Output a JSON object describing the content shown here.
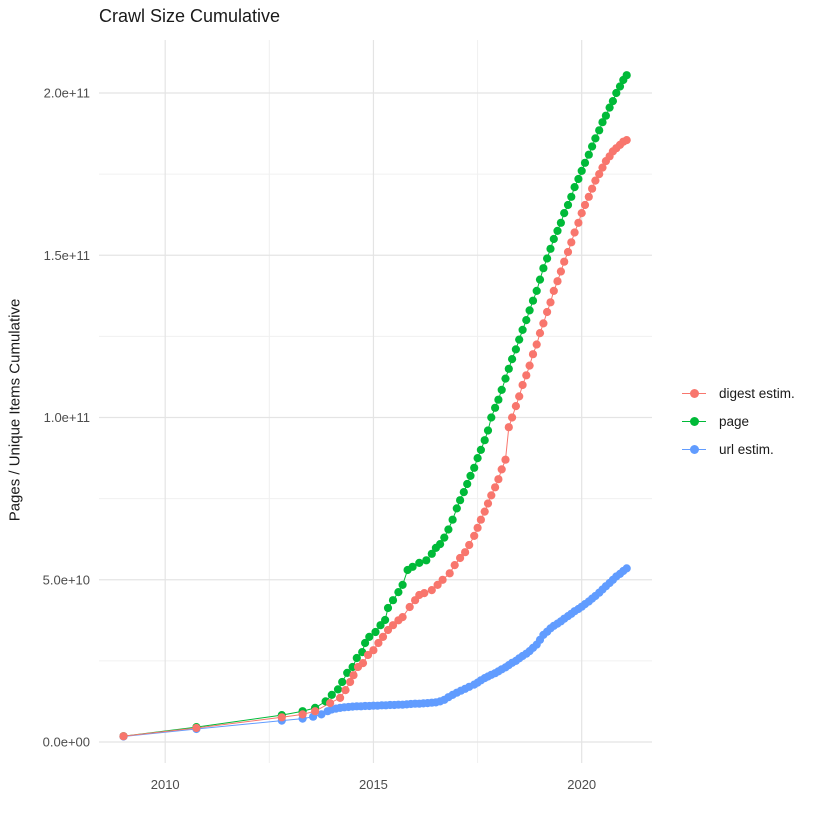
{
  "title": "Crawl Size Cumulative",
  "y_axis_title": "Pages / Unique Items Cumulative",
  "legend": {
    "position": "right",
    "items": [
      {
        "label": "digest estim.",
        "color": "#F8766D"
      },
      {
        "label": "page",
        "color": "#00BA38"
      },
      {
        "label": "url estim.",
        "color": "#619CFF"
      }
    ]
  },
  "axes": {
    "x_tick_labels": [
      "2010",
      "2015",
      "2020"
    ],
    "x_tick_years": [
      2010,
      2015,
      2020
    ],
    "x_minor_years": [
      2012.5,
      2017.5
    ],
    "y_tick_labels": [
      "0.0e+00",
      "5.0e+10",
      "1.0e+11",
      "1.5e+11",
      "2.0e+11"
    ],
    "y_tick_values_e10": [
      0,
      5,
      10,
      15,
      20
    ],
    "y_minor_values_e10": [
      2.5,
      7.5,
      12.5,
      17.5
    ]
  },
  "colors": {
    "background": "#ffffff",
    "grid_major": "#e4e4e4",
    "grid_minor": "#f0f0f0",
    "tick_text": "#4d4d4d",
    "title_text": "#1a1a1a",
    "digest": "#F8766D",
    "page": "#00BA38",
    "url": "#619CFF"
  },
  "chart_data": {
    "type": "line",
    "style": "line-with-points",
    "title": "Crawl Size Cumulative",
    "xlabel": "",
    "ylabel": "Pages / Unique Items Cumulative",
    "x_unit": "year (decimal)",
    "value_unit_multiplier": 10000000000.0,
    "xlim": [
      2008.4,
      2021.7
    ],
    "ylim": [
      0,
      205000000000.0
    ],
    "grid": true,
    "legend_position": "right",
    "series": [
      {
        "name": "digest estim.",
        "color": "#F8766D",
        "points_year_value_e10": [
          [
            2009.0,
            0.18
          ],
          [
            2010.75,
            0.43
          ],
          [
            2012.8,
            0.76
          ],
          [
            2013.3,
            0.85
          ],
          [
            2013.6,
            0.95
          ],
          [
            2013.96,
            1.2
          ],
          [
            2014.2,
            1.36
          ],
          [
            2014.33,
            1.6
          ],
          [
            2014.44,
            1.85
          ],
          [
            2014.52,
            2.06
          ],
          [
            2014.63,
            2.31
          ],
          [
            2014.75,
            2.43
          ],
          [
            2014.87,
            2.68
          ],
          [
            2015.0,
            2.83
          ],
          [
            2015.12,
            3.05
          ],
          [
            2015.23,
            3.24
          ],
          [
            2015.35,
            3.45
          ],
          [
            2015.47,
            3.6
          ],
          [
            2015.6,
            3.75
          ],
          [
            2015.7,
            3.85
          ],
          [
            2015.87,
            4.16
          ],
          [
            2016.0,
            4.37
          ],
          [
            2016.1,
            4.53
          ],
          [
            2016.22,
            4.59
          ],
          [
            2016.4,
            4.68
          ],
          [
            2016.54,
            4.84
          ],
          [
            2016.66,
            5.0
          ],
          [
            2016.83,
            5.2
          ],
          [
            2016.95,
            5.45
          ],
          [
            2017.08,
            5.67
          ],
          [
            2017.2,
            5.85
          ],
          [
            2017.3,
            6.07
          ],
          [
            2017.42,
            6.35
          ],
          [
            2017.5,
            6.6
          ],
          [
            2017.58,
            6.85
          ],
          [
            2017.67,
            7.1
          ],
          [
            2017.75,
            7.35
          ],
          [
            2017.83,
            7.6
          ],
          [
            2017.92,
            7.85
          ],
          [
            2018.0,
            8.1
          ],
          [
            2018.08,
            8.4
          ],
          [
            2018.17,
            8.7
          ],
          [
            2018.25,
            9.7
          ],
          [
            2018.33,
            10.0
          ],
          [
            2018.42,
            10.35
          ],
          [
            2018.5,
            10.65
          ],
          [
            2018.58,
            11.0
          ],
          [
            2018.67,
            11.3
          ],
          [
            2018.75,
            11.6
          ],
          [
            2018.83,
            11.95
          ],
          [
            2018.92,
            12.25
          ],
          [
            2019.0,
            12.6
          ],
          [
            2019.08,
            12.9
          ],
          [
            2019.17,
            13.25
          ],
          [
            2019.25,
            13.55
          ],
          [
            2019.33,
            13.9
          ],
          [
            2019.42,
            14.2
          ],
          [
            2019.5,
            14.5
          ],
          [
            2019.58,
            14.8
          ],
          [
            2019.67,
            15.1
          ],
          [
            2019.75,
            15.4
          ],
          [
            2019.83,
            15.7
          ],
          [
            2019.92,
            16.0
          ],
          [
            2020.0,
            16.3
          ],
          [
            2020.08,
            16.55
          ],
          [
            2020.17,
            16.8
          ],
          [
            2020.25,
            17.05
          ],
          [
            2020.33,
            17.3
          ],
          [
            2020.42,
            17.5
          ],
          [
            2020.5,
            17.7
          ],
          [
            2020.58,
            17.9
          ],
          [
            2020.67,
            18.05
          ],
          [
            2020.75,
            18.2
          ],
          [
            2020.83,
            18.3
          ],
          [
            2020.92,
            18.4
          ],
          [
            2021.0,
            18.5
          ],
          [
            2021.08,
            18.55
          ]
        ]
      },
      {
        "name": "page",
        "color": "#00BA38",
        "points_year_value_e10": [
          [
            2009.0,
            0.18
          ],
          [
            2010.75,
            0.46
          ],
          [
            2012.8,
            0.83
          ],
          [
            2013.3,
            0.95
          ],
          [
            2013.6,
            1.05
          ],
          [
            2013.85,
            1.25
          ],
          [
            2014.0,
            1.45
          ],
          [
            2014.15,
            1.62
          ],
          [
            2014.25,
            1.85
          ],
          [
            2014.37,
            2.13
          ],
          [
            2014.5,
            2.31
          ],
          [
            2014.6,
            2.59
          ],
          [
            2014.73,
            2.77
          ],
          [
            2014.8,
            3.05
          ],
          [
            2014.9,
            3.24
          ],
          [
            2015.05,
            3.39
          ],
          [
            2015.17,
            3.6
          ],
          [
            2015.28,
            3.76
          ],
          [
            2015.35,
            4.13
          ],
          [
            2015.47,
            4.37
          ],
          [
            2015.6,
            4.62
          ],
          [
            2015.7,
            4.84
          ],
          [
            2015.82,
            5.3
          ],
          [
            2015.94,
            5.4
          ],
          [
            2016.1,
            5.52
          ],
          [
            2016.27,
            5.6
          ],
          [
            2016.4,
            5.8
          ],
          [
            2016.5,
            5.98
          ],
          [
            2016.6,
            6.1
          ],
          [
            2016.7,
            6.3
          ],
          [
            2016.8,
            6.55
          ],
          [
            2016.9,
            6.85
          ],
          [
            2017.0,
            7.2
          ],
          [
            2017.08,
            7.45
          ],
          [
            2017.17,
            7.7
          ],
          [
            2017.25,
            7.95
          ],
          [
            2017.33,
            8.2
          ],
          [
            2017.42,
            8.45
          ],
          [
            2017.5,
            8.75
          ],
          [
            2017.58,
            9.0
          ],
          [
            2017.67,
            9.3
          ],
          [
            2017.75,
            9.6
          ],
          [
            2017.83,
            10.0
          ],
          [
            2017.92,
            10.3
          ],
          [
            2018.0,
            10.55
          ],
          [
            2018.08,
            10.85
          ],
          [
            2018.17,
            11.2
          ],
          [
            2018.25,
            11.5
          ],
          [
            2018.33,
            11.8
          ],
          [
            2018.42,
            12.1
          ],
          [
            2018.5,
            12.4
          ],
          [
            2018.58,
            12.7
          ],
          [
            2018.67,
            13.0
          ],
          [
            2018.75,
            13.3
          ],
          [
            2018.83,
            13.6
          ],
          [
            2018.92,
            13.9
          ],
          [
            2019.0,
            14.25
          ],
          [
            2019.08,
            14.6
          ],
          [
            2019.17,
            14.9
          ],
          [
            2019.25,
            15.2
          ],
          [
            2019.33,
            15.5
          ],
          [
            2019.42,
            15.75
          ],
          [
            2019.5,
            16.0
          ],
          [
            2019.58,
            16.3
          ],
          [
            2019.67,
            16.55
          ],
          [
            2019.75,
            16.8
          ],
          [
            2019.83,
            17.1
          ],
          [
            2019.92,
            17.35
          ],
          [
            2020.0,
            17.6
          ],
          [
            2020.08,
            17.85
          ],
          [
            2020.17,
            18.1
          ],
          [
            2020.25,
            18.35
          ],
          [
            2020.33,
            18.6
          ],
          [
            2020.42,
            18.85
          ],
          [
            2020.5,
            19.1
          ],
          [
            2020.58,
            19.3
          ],
          [
            2020.67,
            19.55
          ],
          [
            2020.75,
            19.75
          ],
          [
            2020.83,
            20.0
          ],
          [
            2020.92,
            20.2
          ],
          [
            2021.0,
            20.4
          ],
          [
            2021.08,
            20.55
          ]
        ]
      },
      {
        "name": "url estim.",
        "color": "#619CFF",
        "points_year_value_e10": [
          [
            2009.0,
            0.17
          ],
          [
            2010.75,
            0.4
          ],
          [
            2012.8,
            0.66
          ],
          [
            2013.3,
            0.72
          ],
          [
            2013.55,
            0.78
          ],
          [
            2013.75,
            0.85
          ],
          [
            2013.9,
            0.95
          ],
          [
            2014.0,
            1.0
          ],
          [
            2014.1,
            1.03
          ],
          [
            2014.2,
            1.05
          ],
          [
            2014.3,
            1.07
          ],
          [
            2014.4,
            1.08
          ],
          [
            2014.5,
            1.09
          ],
          [
            2014.6,
            1.1
          ],
          [
            2014.7,
            1.1
          ],
          [
            2014.8,
            1.11
          ],
          [
            2014.9,
            1.11
          ],
          [
            2015.0,
            1.12
          ],
          [
            2015.1,
            1.12
          ],
          [
            2015.2,
            1.13
          ],
          [
            2015.3,
            1.13
          ],
          [
            2015.4,
            1.14
          ],
          [
            2015.5,
            1.14
          ],
          [
            2015.6,
            1.15
          ],
          [
            2015.7,
            1.15
          ],
          [
            2015.8,
            1.16
          ],
          [
            2015.9,
            1.17
          ],
          [
            2016.0,
            1.18
          ],
          [
            2016.1,
            1.18
          ],
          [
            2016.2,
            1.19
          ],
          [
            2016.3,
            1.2
          ],
          [
            2016.4,
            1.21
          ],
          [
            2016.5,
            1.22
          ],
          [
            2016.6,
            1.25
          ],
          [
            2016.7,
            1.3
          ],
          [
            2016.8,
            1.38
          ],
          [
            2016.9,
            1.45
          ],
          [
            2017.0,
            1.52
          ],
          [
            2017.1,
            1.58
          ],
          [
            2017.2,
            1.64
          ],
          [
            2017.3,
            1.7
          ],
          [
            2017.42,
            1.77
          ],
          [
            2017.5,
            1.83
          ],
          [
            2017.58,
            1.9
          ],
          [
            2017.67,
            1.97
          ],
          [
            2017.75,
            2.02
          ],
          [
            2017.83,
            2.07
          ],
          [
            2017.92,
            2.12
          ],
          [
            2018.0,
            2.18
          ],
          [
            2018.08,
            2.24
          ],
          [
            2018.17,
            2.3
          ],
          [
            2018.25,
            2.37
          ],
          [
            2018.33,
            2.44
          ],
          [
            2018.42,
            2.5
          ],
          [
            2018.5,
            2.58
          ],
          [
            2018.58,
            2.65
          ],
          [
            2018.67,
            2.72
          ],
          [
            2018.75,
            2.8
          ],
          [
            2018.83,
            2.9
          ],
          [
            2018.92,
            3.0
          ],
          [
            2019.0,
            3.15
          ],
          [
            2019.08,
            3.3
          ],
          [
            2019.17,
            3.4
          ],
          [
            2019.25,
            3.5
          ],
          [
            2019.33,
            3.58
          ],
          [
            2019.42,
            3.65
          ],
          [
            2019.5,
            3.72
          ],
          [
            2019.58,
            3.8
          ],
          [
            2019.67,
            3.88
          ],
          [
            2019.75,
            3.95
          ],
          [
            2019.83,
            4.03
          ],
          [
            2019.92,
            4.1
          ],
          [
            2020.0,
            4.17
          ],
          [
            2020.08,
            4.25
          ],
          [
            2020.17,
            4.33
          ],
          [
            2020.25,
            4.42
          ],
          [
            2020.33,
            4.5
          ],
          [
            2020.42,
            4.6
          ],
          [
            2020.5,
            4.7
          ],
          [
            2020.58,
            4.8
          ],
          [
            2020.67,
            4.9
          ],
          [
            2020.75,
            5.0
          ],
          [
            2020.83,
            5.1
          ],
          [
            2020.92,
            5.18
          ],
          [
            2021.0,
            5.27
          ],
          [
            2021.08,
            5.35
          ]
        ]
      }
    ]
  }
}
